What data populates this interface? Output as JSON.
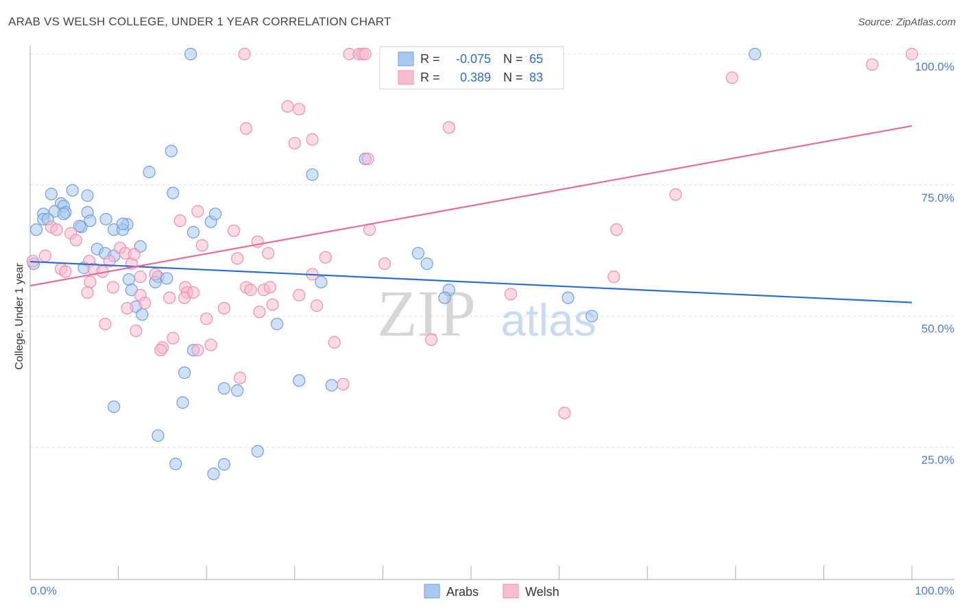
{
  "title": "ARAB VS WELSH COLLEGE, UNDER 1 YEAR CORRELATION CHART",
  "source": "Source: ZipAtlas.com",
  "watermark": {
    "zip": "ZIP",
    "atlas": "atlas"
  },
  "colors": {
    "arabs_fill": "#aac8ef",
    "arabs_stroke": "#6f9fdc",
    "arabs_line": "#2b6fce",
    "welsh_fill": "#f7bcd0",
    "welsh_stroke": "#ec8fae",
    "welsh_line": "#e46d98",
    "tick_label": "#4a7cc9",
    "grid": "#dddddd"
  },
  "legend_box": {
    "rows": [
      {
        "series": "Arabs",
        "r_label": "R =",
        "r_value": "-0.075",
        "n_label": "N =",
        "n_value": "65"
      },
      {
        "series": "Welsh",
        "r_label": "R =",
        "r_value": "0.389",
        "n_label": "N =",
        "n_value": "83"
      }
    ]
  },
  "chart_data": {
    "type": "scatter",
    "title": "ARAB VS WELSH COLLEGE, UNDER 1 YEAR CORRELATION CHART",
    "xlabel": "",
    "ylabel": "College, Under 1 year",
    "xlim": [
      0,
      100
    ],
    "ylim": [
      0,
      100
    ],
    "x_tick_labels": {
      "min": "0.0%",
      "max": "100.0%"
    },
    "y_ticks": [
      {
        "value": 25,
        "label": "25.0%"
      },
      {
        "value": 50,
        "label": "50.0%"
      },
      {
        "value": 75,
        "label": "75.0%"
      },
      {
        "value": 100,
        "label": "100.0%"
      }
    ],
    "legend": [
      "Arabs",
      "Welsh"
    ],
    "series": [
      {
        "name": "Arabs",
        "trend": {
          "x0": 0,
          "y0": 60.4,
          "x1": 100,
          "y1": 52.6
        },
        "points": [
          [
            18.2,
            100
          ],
          [
            82.2,
            100
          ],
          [
            16,
            81.5
          ],
          [
            13.5,
            77.5
          ],
          [
            32,
            77
          ],
          [
            38,
            80
          ],
          [
            16.2,
            73.5
          ],
          [
            2.4,
            73.3
          ],
          [
            4.8,
            74
          ],
          [
            6.5,
            73
          ],
          [
            3.5,
            71.5
          ],
          [
            3.8,
            71
          ],
          [
            2.8,
            70
          ],
          [
            1.5,
            69.5
          ],
          [
            4,
            69.8
          ],
          [
            6.5,
            69.8
          ],
          [
            8.6,
            68.5
          ],
          [
            11,
            67.5
          ],
          [
            20.5,
            68
          ],
          [
            21,
            69.5
          ],
          [
            6.8,
            68.2
          ],
          [
            1.5,
            68.5
          ],
          [
            5.8,
            67
          ],
          [
            9.5,
            66.5
          ],
          [
            10.5,
            66.5
          ],
          [
            18.5,
            66
          ],
          [
            0.7,
            66.5
          ],
          [
            12.5,
            63.3
          ],
          [
            7.6,
            62.8
          ],
          [
            8.5,
            62
          ],
          [
            9.5,
            61.5
          ],
          [
            44,
            62
          ],
          [
            45,
            60
          ],
          [
            0.4,
            60
          ],
          [
            6.1,
            59.2
          ],
          [
            11.2,
            57
          ],
          [
            14.5,
            57.5
          ],
          [
            15.5,
            57.2
          ],
          [
            14.2,
            56.5
          ],
          [
            33,
            56.5
          ],
          [
            11.5,
            55
          ],
          [
            47.5,
            55
          ],
          [
            47,
            53.5
          ],
          [
            61,
            53.5
          ],
          [
            12,
            51.8
          ],
          [
            63.7,
            50
          ],
          [
            12.7,
            50.3
          ],
          [
            28,
            48.5
          ],
          [
            18.5,
            43.5
          ],
          [
            17.5,
            39.2
          ],
          [
            30.5,
            37.7
          ],
          [
            34.2,
            36.8
          ],
          [
            22,
            36.2
          ],
          [
            23.5,
            35.8
          ],
          [
            17.3,
            33.5
          ],
          [
            9.5,
            32.7
          ],
          [
            14.5,
            27.2
          ],
          [
            25.8,
            24.2
          ],
          [
            16.5,
            21.8
          ],
          [
            22,
            21.7
          ],
          [
            20.8,
            19.9
          ],
          [
            3.8,
            69.5
          ],
          [
            2,
            68.5
          ],
          [
            10.5,
            67.6
          ],
          [
            5.6,
            67.2
          ]
        ]
      },
      {
        "name": "Welsh",
        "trend": {
          "x0": 0,
          "y0": 55.8,
          "x1": 100,
          "y1": 86.3
        },
        "points": [
          [
            24.3,
            100
          ],
          [
            36.2,
            100
          ],
          [
            37.3,
            100
          ],
          [
            37.7,
            100
          ],
          [
            38,
            100
          ],
          [
            41,
            100
          ],
          [
            41.5,
            100
          ],
          [
            100,
            100
          ],
          [
            95.5,
            98
          ],
          [
            79.6,
            95.5
          ],
          [
            29.2,
            90
          ],
          [
            30.5,
            89.5
          ],
          [
            24.5,
            85.8
          ],
          [
            47.5,
            86
          ],
          [
            30,
            83
          ],
          [
            32,
            83.7
          ],
          [
            38.3,
            80
          ],
          [
            73.2,
            73.2
          ],
          [
            19,
            70
          ],
          [
            17,
            68.2
          ],
          [
            23.1,
            66.3
          ],
          [
            38.5,
            66.5
          ],
          [
            66.5,
            66.5
          ],
          [
            2.4,
            67
          ],
          [
            3,
            66.5
          ],
          [
            4.6,
            65.8
          ],
          [
            25.8,
            64.2
          ],
          [
            5.2,
            64.5
          ],
          [
            19.5,
            63.5
          ],
          [
            10.2,
            63
          ],
          [
            10.8,
            62
          ],
          [
            27,
            62
          ],
          [
            1.7,
            61.5
          ],
          [
            23.5,
            61
          ],
          [
            33.5,
            61.2
          ],
          [
            6.7,
            60.5
          ],
          [
            9,
            60.5
          ],
          [
            11.5,
            60
          ],
          [
            40.2,
            60
          ],
          [
            0.3,
            60.5
          ],
          [
            3.5,
            59
          ],
          [
            7.2,
            59
          ],
          [
            4,
            58.5
          ],
          [
            14.2,
            58
          ],
          [
            8.2,
            58.5
          ],
          [
            12.5,
            57.5
          ],
          [
            32,
            58
          ],
          [
            66.2,
            57.5
          ],
          [
            6.8,
            56.5
          ],
          [
            9.4,
            55.5
          ],
          [
            24.5,
            55.5
          ],
          [
            17.6,
            55.5
          ],
          [
            26.5,
            55
          ],
          [
            27.2,
            55.5
          ],
          [
            6.5,
            54.5
          ],
          [
            17.8,
            54.5
          ],
          [
            18.5,
            54.5
          ],
          [
            12.5,
            54
          ],
          [
            30.5,
            54
          ],
          [
            54.5,
            54.2
          ],
          [
            15.8,
            53.5
          ],
          [
            17.5,
            53.5
          ],
          [
            13,
            52.5
          ],
          [
            32.5,
            52
          ],
          [
            11,
            51.5
          ],
          [
            22,
            51.5
          ],
          [
            26,
            50.8
          ],
          [
            20,
            49.5
          ],
          [
            8.5,
            48.5
          ],
          [
            12,
            47.2
          ],
          [
            16.2,
            45.8
          ],
          [
            34.5,
            45
          ],
          [
            45.5,
            45.5
          ],
          [
            15,
            44
          ],
          [
            20.5,
            44.5
          ],
          [
            14.8,
            43.5
          ],
          [
            19,
            43.5
          ],
          [
            23.8,
            38.2
          ],
          [
            35.5,
            37
          ],
          [
            60.6,
            31.5
          ],
          [
            27.5,
            52.2
          ],
          [
            25,
            55
          ],
          [
            11.8,
            61.8
          ]
        ]
      }
    ]
  }
}
